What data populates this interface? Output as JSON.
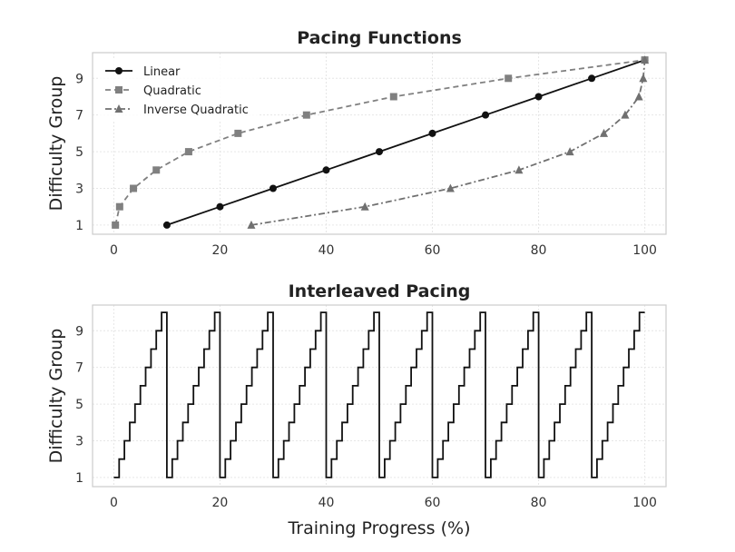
{
  "chart_data": [
    {
      "type": "line",
      "title": "Pacing Functions",
      "xlabel": "",
      "ylabel": "Difficulty Group",
      "xlim": [
        -4,
        104
      ],
      "ylim": [
        0.5,
        10.4
      ],
      "xticks": [
        0,
        20,
        40,
        60,
        80,
        100
      ],
      "yticks": [
        1,
        3,
        5,
        7,
        9
      ],
      "grid": true,
      "legend_position": "top-left",
      "series": [
        {
          "name": "Linear",
          "color": "#111111",
          "line_style": "solid",
          "marker": "circle",
          "x": [
            10,
            20,
            30,
            40,
            50,
            60,
            70,
            80,
            90,
            100
          ],
          "y": [
            1,
            2,
            3,
            4,
            5,
            6,
            7,
            8,
            9,
            10
          ]
        },
        {
          "name": "Quadratic",
          "color": "#808080",
          "line_style": "dashed",
          "marker": "square",
          "x": [
            0.3,
            1.1,
            3.7,
            8.0,
            14.1,
            23.4,
            36.3,
            52.7,
            74.3,
            100
          ],
          "y": [
            1,
            2,
            3,
            4,
            5,
            6,
            7,
            8,
            9,
            10
          ]
        },
        {
          "name": "Inverse Quadratic",
          "color": "#707070",
          "line_style": "dashdot",
          "marker": "triangle",
          "x": [
            25.9,
            47.3,
            63.4,
            76.3,
            85.9,
            92.3,
            96.3,
            98.9,
            99.7,
            100
          ],
          "y": [
            1,
            2,
            3,
            4,
            5,
            6,
            7,
            8,
            9,
            10
          ]
        }
      ]
    },
    {
      "type": "line",
      "title": "Interleaved Pacing",
      "xlabel": "Training Progress (%)",
      "ylabel": "Difficulty Group",
      "xlim": [
        -4,
        104
      ],
      "ylim": [
        0.5,
        10.4
      ],
      "xticks": [
        0,
        20,
        40,
        60,
        80,
        100
      ],
      "yticks": [
        1,
        3,
        5,
        7,
        9
      ],
      "grid": true,
      "step_pattern": {
        "cycles": 10,
        "cycle_length": 10,
        "levels": [
          1,
          2,
          3,
          4,
          5,
          6,
          7,
          8,
          9,
          10
        ],
        "color": "#111111"
      }
    }
  ]
}
